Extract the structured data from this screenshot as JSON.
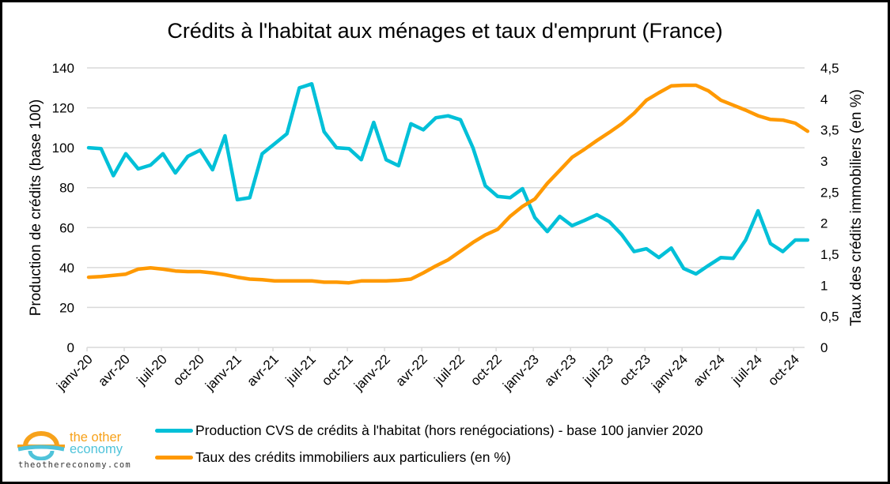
{
  "chart_data": {
    "type": "line",
    "title": "Crédits à l'habitat aux ménages et taux d'emprunt (France)",
    "ylabel": "Production de crédits (base 100)",
    "y2label": "Taux des crédits immobiliers (en %)",
    "ylim": [
      0,
      140
    ],
    "y2lim": [
      0,
      4.5
    ],
    "yticks": [
      "0",
      "20",
      "40",
      "60",
      "80",
      "100",
      "120",
      "140"
    ],
    "y2ticks": [
      "0",
      "0,5",
      "1",
      "1,5",
      "2",
      "2,5",
      "3",
      "3,5",
      "4",
      "4,5"
    ],
    "xtick_labels": [
      "janv-20",
      "avr-20",
      "juil-20",
      "oct-20",
      "janv-21",
      "avr-21",
      "juil-21",
      "oct-21",
      "janv-22",
      "avr-22",
      "juil-22",
      "oct-22",
      "janv-23",
      "avr-23",
      "juil-23",
      "oct-23",
      "janv-24",
      "avr-24",
      "juil-24",
      "oct-24"
    ],
    "x_start": "janv-20",
    "n_months": 59,
    "grid": true,
    "legend_position": "bottom",
    "series": [
      {
        "name": "Production CVS de crédits à l'habitat (hors renégociations) - base 100 janvier 2020",
        "axis": "left",
        "color": "#00C0D8",
        "values": [
          100,
          99.6,
          86,
          97,
          89.4,
          91.3,
          97,
          87.4,
          95.7,
          98.8,
          89,
          106,
          74,
          75,
          97,
          102,
          107,
          130,
          132,
          108,
          100,
          99.6,
          94,
          112.7,
          94,
          91,
          112,
          109,
          115,
          116,
          114,
          100,
          81,
          75.6,
          75,
          79.5,
          65,
          58,
          65.6,
          61,
          63.6,
          66.5,
          63,
          56.5,
          48,
          49.4,
          45,
          49.8,
          39.5,
          36.8,
          41,
          45,
          44.6,
          53.8,
          68.4,
          52,
          48,
          53.8,
          53.8
        ]
      },
      {
        "name": "Taux des crédits immobiliers aux particuliers (en %)",
        "axis": "right",
        "color": "#FF9900",
        "values": [
          1.13,
          1.14,
          1.16,
          1.18,
          1.26,
          1.28,
          1.26,
          1.23,
          1.22,
          1.22,
          1.2,
          1.17,
          1.13,
          1.1,
          1.09,
          1.07,
          1.07,
          1.07,
          1.07,
          1.05,
          1.05,
          1.04,
          1.07,
          1.07,
          1.07,
          1.08,
          1.1,
          1.2,
          1.31,
          1.41,
          1.55,
          1.69,
          1.81,
          1.9,
          2.11,
          2.27,
          2.39,
          2.64,
          2.85,
          3.06,
          3.19,
          3.33,
          3.46,
          3.6,
          3.77,
          3.98,
          4.1,
          4.21,
          4.22,
          4.22,
          4.13,
          3.98,
          3.9,
          3.82,
          3.73,
          3.67,
          3.66,
          3.61,
          3.48
        ]
      }
    ]
  },
  "legend": {
    "items": [
      {
        "label": "Production CVS de crédits à l'habitat (hors renégociations) - base 100 janvier 2020",
        "color": "#00C0D8"
      },
      {
        "label": "Taux des crédits immobiliers aux particuliers (en %)",
        "color": "#FF9900"
      }
    ]
  },
  "logo": {
    "line1_a": "the ",
    "line1_b": "other",
    "line2": "economy",
    "url": "theothereconomy.com",
    "orange": "#F7A21B",
    "blue": "#4FC3DA"
  },
  "colors": {
    "grid": "#D9D9D9",
    "frame": "#000000"
  }
}
